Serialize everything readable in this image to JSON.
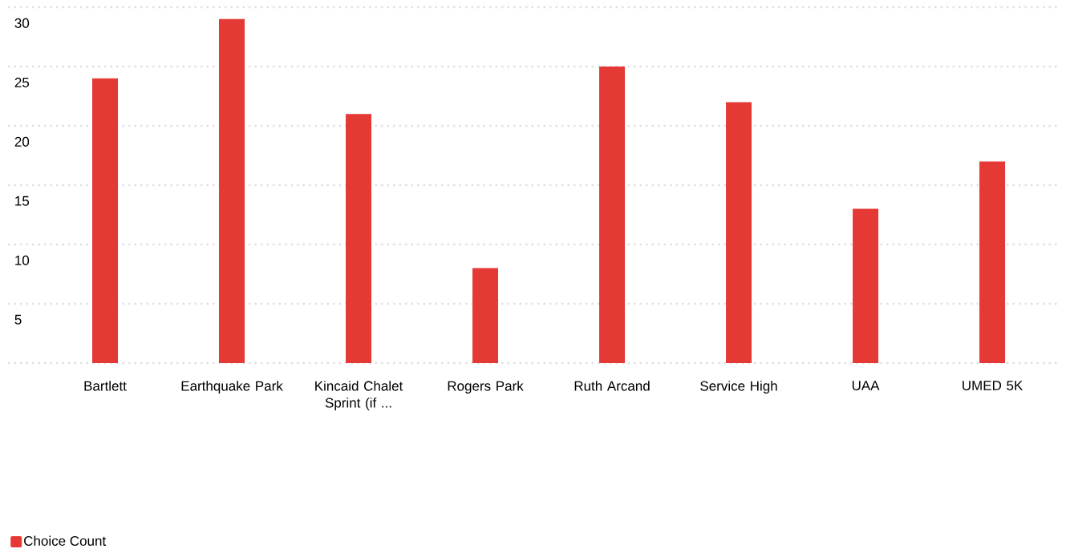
{
  "chart_data": {
    "type": "bar",
    "categories": [
      "Bartlett",
      "Earthquake Park",
      "Kincaid Chalet Sprint (if ...",
      "Rogers Park",
      "Ruth Arcand",
      "Service High",
      "UAA",
      "UMED 5K"
    ],
    "series": [
      {
        "name": "Choice Count",
        "color": "#e53935",
        "values": [
          24,
          29,
          21,
          8,
          25,
          22,
          13,
          17
        ]
      }
    ],
    "ylim": [
      0,
      30
    ],
    "yticks": [
      {
        "value": 0,
        "label": null
      },
      5,
      10,
      15,
      20,
      25,
      30
    ],
    "grid": "y",
    "legend": "bottom left"
  }
}
